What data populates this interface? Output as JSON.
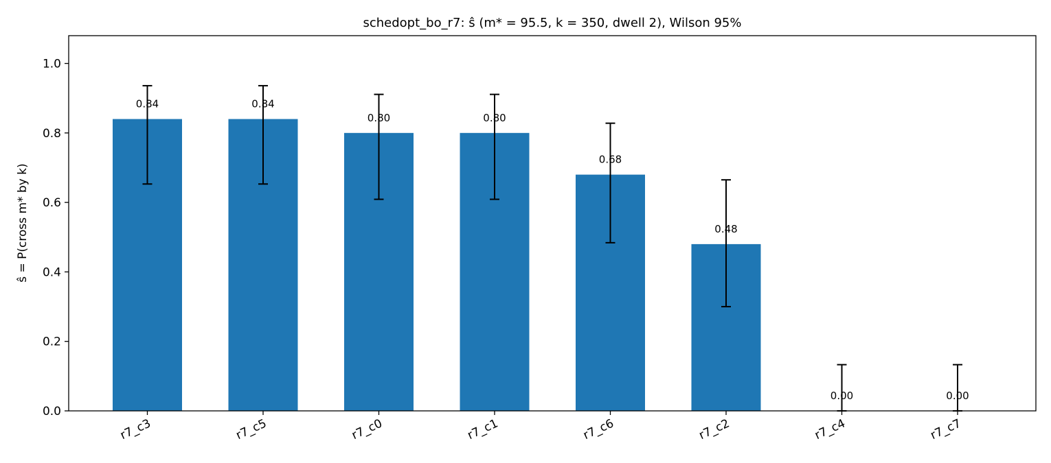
{
  "chart_data": {
    "type": "bar",
    "title": "schedopt_bo_r7: ŝ (m* = 95.5, k = 350, dwell 2), Wilson 95%",
    "xlabel": "",
    "ylabel": "ŝ = P(cross m* by k)",
    "ylim": [
      0,
      1.08
    ],
    "yticks": [
      "0.0",
      "0.2",
      "0.4",
      "0.6",
      "0.8",
      "1.0"
    ],
    "categories": [
      "r7_c3",
      "r7_c5",
      "r7_c0",
      "r7_c1",
      "r7_c6",
      "r7_c2",
      "r7_c4",
      "r7_c7"
    ],
    "values": [
      0.84,
      0.84,
      0.8,
      0.8,
      0.68,
      0.48,
      0.0,
      0.0
    ],
    "value_labels": [
      "0.84",
      "0.84",
      "0.80",
      "0.80",
      "0.68",
      "0.48",
      "0.00",
      "0.00"
    ],
    "ci_low": [
      0.653,
      0.653,
      0.609,
      0.609,
      0.484,
      0.3,
      0.0,
      0.0
    ],
    "ci_high": [
      0.936,
      0.936,
      0.911,
      0.911,
      0.828,
      0.665,
      0.133,
      0.133
    ],
    "bar_color": "#1f77b4",
    "grid": false,
    "legend": false
  }
}
